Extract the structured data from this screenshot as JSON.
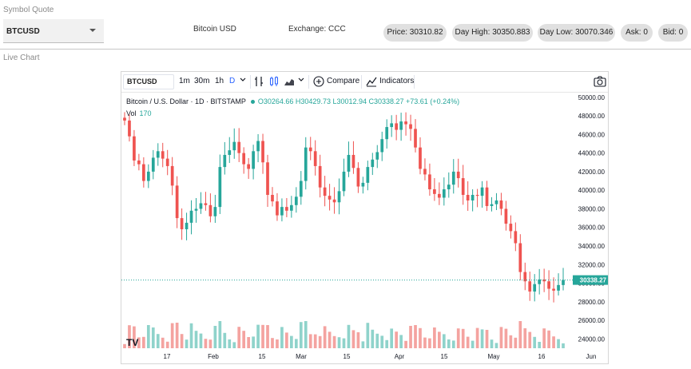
{
  "quote": {
    "section_label": "Symbol Quote",
    "symbol_value": "BTCUSD",
    "description": "Bitcoin USD",
    "exchange": "Exchange: CCC",
    "pills": {
      "price": "Price: 30310.82",
      "day_high": "Day High: 30350.883",
      "day_low": "Day Low: 30070.346",
      "ask": "Ask: 0",
      "bid": "Bid: 0"
    }
  },
  "live_chart": {
    "section_label": "Live Chart",
    "toolbar": {
      "symbol": "BTCUSD",
      "intervals": [
        "1m",
        "30m",
        "1h",
        "D"
      ],
      "compare_label": "Compare",
      "indicators_label": "Indicators"
    },
    "legend": {
      "title": "Bitcoin / U.S. Dollar · 1D · BITSTAMP",
      "ohlc": "O30264.66 H30429.73 L30012.94 C30338.27 +73.61 (+0.24%)",
      "vol_label": "Vol",
      "vol_value": "170"
    },
    "last_price_label": "30338.27",
    "colors": {
      "up": "#26a69a",
      "down": "#ef5350",
      "up_vol": "#8fd3cb",
      "down_vol": "#f4a3a0"
    }
  },
  "chart_data": {
    "type": "candlestick",
    "y_ticks": [
      24000,
      26000,
      28000,
      30000,
      32000,
      34000,
      36000,
      38000,
      40000,
      42000,
      44000,
      46000,
      48000,
      50000
    ],
    "ylim": [
      23000,
      50500
    ],
    "x_tick_labels": [
      "17",
      "Feb",
      "15",
      "Mar",
      "15",
      "Apr",
      "15",
      "May",
      "16",
      "Jun"
    ],
    "last_price": 30338.27,
    "candles_close": [
      47500,
      45800,
      43200,
      42800,
      41000,
      42000,
      43500,
      44200,
      43400,
      42600,
      40500,
      37000,
      35800,
      36500,
      37800,
      38000,
      38600,
      38400,
      37200,
      38200,
      42500,
      43800,
      44300,
      45200,
      44000,
      42800,
      42300,
      44200,
      45300,
      43000,
      39500,
      38800,
      37300,
      38200,
      37800,
      38400,
      39300,
      41000,
      44600,
      44200,
      42600,
      40300,
      39400,
      39000,
      38700,
      39900,
      42000,
      43800,
      42400,
      40400,
      40800,
      42500,
      43300,
      44100,
      45500,
      46800,
      47200,
      46500,
      47400,
      47100,
      46600,
      44600,
      42300,
      41700,
      40100,
      39600,
      39200,
      40100,
      40600,
      42000,
      41300,
      39500,
      38900,
      39500,
      39400,
      40300,
      38300,
      38500,
      38900,
      38000,
      36400,
      35600,
      34300,
      31200,
      30200,
      29100,
      29900,
      30400,
      30200,
      29400,
      29200,
      29800,
      30338
    ]
  }
}
